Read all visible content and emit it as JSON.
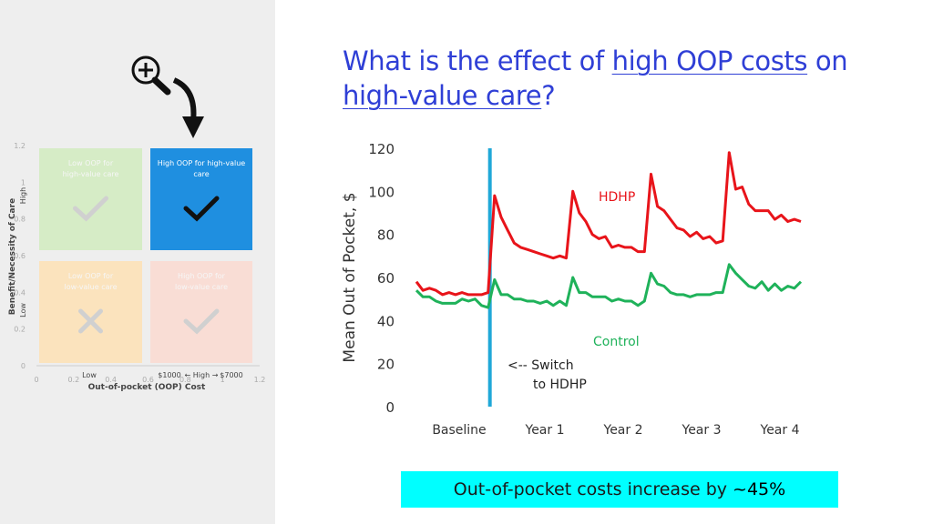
{
  "title": {
    "part1": "What is the effect of ",
    "link1": "high OOP costs",
    "part2": " on ",
    "link2": "high-value care",
    "part3": "?"
  },
  "callout": {
    "text": "Out-of-pocket costs increase by ",
    "value": "~45%"
  },
  "colors": {
    "hdhp": "#e8141a",
    "control": "#1fb25a",
    "switch_line": "#20a8d8",
    "title": "#2f3fd6",
    "callout_bg": "#00ffff"
  },
  "icons": [
    "zoom-in-icon",
    "curved-arrow-icon"
  ],
  "chart_data": [
    {
      "type": "line",
      "ylabel": "Mean Out of Pocket, $",
      "ylim": [
        0,
        120
      ],
      "yticks": [
        "0",
        "20",
        "40",
        "60",
        "80",
        "100",
        "120"
      ],
      "period_labels": [
        "Baseline",
        "Year 1",
        "Year 2",
        "Year 3",
        "Year 4"
      ],
      "grid": false,
      "x": [
        0,
        1,
        2,
        3,
        4,
        5,
        6,
        7,
        8,
        9,
        10,
        11,
        12,
        13,
        14,
        15,
        16,
        17,
        18,
        19,
        20,
        21,
        22,
        23,
        24,
        25,
        26,
        27,
        28,
        29,
        30,
        31,
        32,
        33,
        34,
        35,
        36,
        37,
        38,
        39,
        40,
        41,
        42,
        43,
        44,
        45,
        46,
        47,
        48,
        49,
        50,
        51,
        52,
        53,
        54,
        55,
        56,
        57,
        58,
        59
      ],
      "series": [
        {
          "name": "HDHP",
          "values": [
            58,
            54,
            55,
            54,
            52,
            53,
            52,
            53,
            52,
            52,
            52,
            53,
            98,
            88,
            82,
            76,
            74,
            73,
            72,
            71,
            70,
            69,
            70,
            69,
            100,
            90,
            86,
            80,
            78,
            79,
            74,
            75,
            74,
            74,
            72,
            72,
            108,
            93,
            91,
            87,
            83,
            82,
            79,
            81,
            78,
            79,
            76,
            77,
            118,
            101,
            102,
            94,
            91,
            91,
            91,
            87,
            89,
            86,
            87,
            86
          ]
        },
        {
          "name": "Control",
          "values": [
            54,
            51,
            51,
            49,
            48,
            48,
            48,
            50,
            49,
            50,
            47,
            46,
            59,
            52,
            52,
            50,
            50,
            49,
            49,
            48,
            49,
            47,
            49,
            47,
            60,
            53,
            53,
            51,
            51,
            51,
            49,
            50,
            49,
            49,
            47,
            49,
            62,
            57,
            56,
            53,
            52,
            52,
            51,
            52,
            52,
            52,
            53,
            53,
            66,
            62,
            59,
            56,
            55,
            58,
            54,
            57,
            54,
            56,
            55,
            58
          ]
        }
      ],
      "annotations": [
        "<-- Switch",
        "to HDHP"
      ]
    },
    {
      "type": "scatter",
      "xlabel": "Out-of-pocket (OOP) Cost",
      "ylabel": "Benefit/Necessity of Care",
      "xticks": [
        "0",
        "0.2",
        "0.4",
        "0.6",
        "0.8",
        "1",
        "1.2"
      ],
      "yticks": [
        "0",
        "0.2",
        "0.4",
        "0.6",
        "0.8",
        "1",
        "1.2"
      ],
      "x_range_labels": [
        "Low",
        "$1000",
        "High",
        "$7000"
      ],
      "y_range_labels": [
        "Low",
        "High"
      ],
      "quadrants": [
        {
          "label": "Low OOP for high-value care",
          "symbol": "check",
          "highlighted": false,
          "color": "#d6ecc6"
        },
        {
          "label": "High OOP for high-value care",
          "symbol": "check",
          "highlighted": true,
          "color": "#1f8fe0"
        },
        {
          "label": "Low OOP for low-value care",
          "symbol": "cross",
          "highlighted": false,
          "color": "#fbe3bd"
        },
        {
          "label": "High OOP for low-value care",
          "symbol": "check",
          "highlighted": false,
          "color": "#f9ddd5"
        }
      ]
    }
  ]
}
